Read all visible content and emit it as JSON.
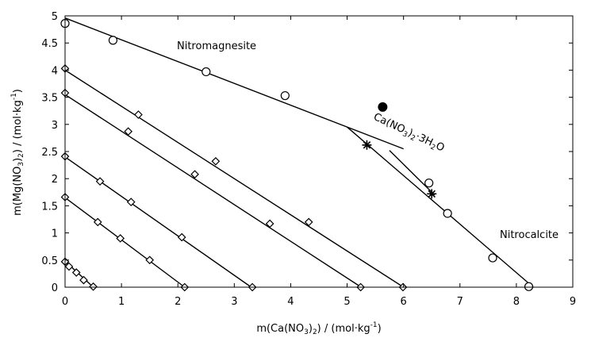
{
  "chart_data": {
    "type": "scatter",
    "xlabel": {
      "pre": "m(Ca(NO",
      "sub": "3",
      "post": ")",
      "sub2": "2",
      "unit": ") / (mol·kg",
      "sup": "-1",
      "end": ")"
    },
    "ylabel": {
      "pre": "m(Mg(NO",
      "sub": "3",
      "post": ")",
      "sub2": "2",
      "unit": ") / (mol·kg",
      "sup": "-1",
      "end": ")"
    },
    "xlim": [
      0,
      9
    ],
    "ylim": [
      0,
      5
    ],
    "xticks": [
      "0",
      "1",
      "2",
      "3",
      "4",
      "5",
      "6",
      "7",
      "8",
      "9"
    ],
    "yticks": [
      "0",
      "0.5",
      "1",
      "1.5",
      "2",
      "2.5",
      "3",
      "3.5",
      "4",
      "4.5",
      "5"
    ],
    "grid": false,
    "annotations": {
      "nitromagnesite": "Nitromagnesite",
      "nitrocalcite": "Nitrocalcite",
      "hydrate": {
        "a": "Ca(NO",
        "b": "3",
        "c": ")",
        "d": "2",
        "e": "·3H",
        "f": "2",
        "g": "O"
      }
    },
    "series": [
      {
        "marker": "circle",
        "points": [
          [
            0.0,
            4.86
          ],
          [
            0.85,
            4.55
          ],
          [
            2.5,
            3.97
          ],
          [
            3.9,
            3.53
          ],
          [
            6.45,
            1.92
          ],
          [
            6.78,
            1.36
          ],
          [
            7.58,
            0.54
          ],
          [
            8.22,
            0.01
          ]
        ]
      },
      {
        "marker": "filled-circle",
        "points": [
          [
            5.63,
            3.32
          ]
        ]
      },
      {
        "marker": "diamond",
        "points": [
          [
            0.0,
            4.03
          ],
          [
            1.3,
            3.18
          ],
          [
            2.67,
            2.32
          ],
          [
            4.32,
            1.2
          ],
          [
            5.99,
            0.0
          ]
        ]
      },
      {
        "marker": "diamond",
        "points": [
          [
            0.0,
            3.58
          ],
          [
            1.12,
            2.87
          ],
          [
            2.3,
            2.08
          ],
          [
            3.63,
            1.17
          ],
          [
            5.24,
            0.0
          ]
        ]
      },
      {
        "marker": "diamond",
        "points": [
          [
            0.0,
            2.41
          ],
          [
            0.62,
            1.95
          ],
          [
            1.17,
            1.57
          ],
          [
            2.07,
            0.92
          ],
          [
            3.32,
            0.0
          ]
        ]
      },
      {
        "marker": "diamond",
        "points": [
          [
            0.0,
            1.66
          ],
          [
            0.58,
            1.2
          ],
          [
            0.98,
            0.9
          ],
          [
            1.5,
            0.5
          ],
          [
            2.12,
            0.0
          ]
        ]
      },
      {
        "marker": "diamond",
        "points": [
          [
            0.0,
            0.47
          ],
          [
            0.07,
            0.38
          ],
          [
            0.2,
            0.27
          ],
          [
            0.33,
            0.13
          ],
          [
            0.5,
            0.01
          ]
        ]
      },
      {
        "marker": "star",
        "points": [
          [
            5.35,
            2.62
          ],
          [
            6.5,
            1.72
          ]
        ]
      }
    ],
    "lines": [
      {
        "points": [
          [
            0,
            4.96
          ],
          [
            6.0,
            2.55
          ]
        ]
      },
      {
        "points": [
          [
            5.0,
            2.95
          ],
          [
            8.3,
            0.0
          ]
        ]
      },
      {
        "points": [
          [
            5.75,
            2.52
          ],
          [
            6.55,
            1.7
          ]
        ]
      },
      {
        "points": [
          [
            0,
            4.0
          ],
          [
            6.0,
            0.0
          ]
        ]
      },
      {
        "points": [
          [
            0,
            3.55
          ],
          [
            5.25,
            0.0
          ]
        ]
      },
      {
        "points": [
          [
            0,
            2.4
          ],
          [
            3.3,
            0.0
          ]
        ]
      },
      {
        "points": [
          [
            0,
            1.65
          ],
          [
            2.12,
            0.0
          ]
        ]
      },
      {
        "points": [
          [
            0,
            0.48
          ],
          [
            0.5,
            0.0
          ]
        ]
      }
    ]
  }
}
